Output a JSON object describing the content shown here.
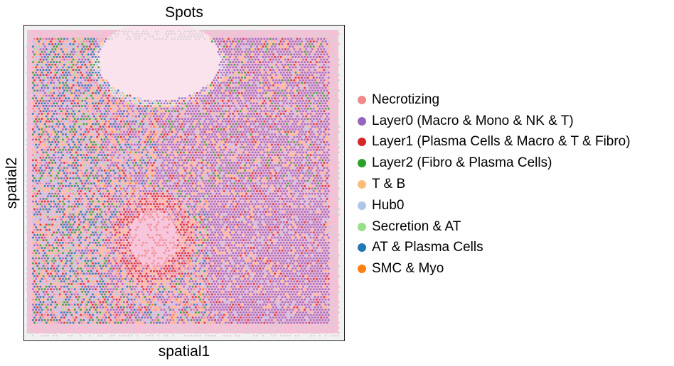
{
  "chart_data": {
    "type": "scatter",
    "title": "Spots",
    "xlabel": "spatial1",
    "ylabel": "spatial2",
    "grid": false,
    "legend_placement": "right",
    "background": "H&E tissue image (pink) underlying spot map",
    "series": [
      {
        "name": "Necrotizing",
        "color": "#f08b8b"
      },
      {
        "name": "Layer0 (Macro & Mono & NK & T)",
        "color": "#9467bd"
      },
      {
        "name": "Layer1 (Plasma Cells & Macro & T & Fibro)",
        "color": "#d62728"
      },
      {
        "name": "Layer2 (Fibro & Plasma Cells)",
        "color": "#2ca02c"
      },
      {
        "name": "T & B",
        "color": "#ffbb78"
      },
      {
        "name": "Hub0",
        "color": "#aec7e8"
      },
      {
        "name": "Secretion & AT",
        "color": "#98df8a"
      },
      {
        "name": "AT & Plasma Cells",
        "color": "#1f77b4"
      },
      {
        "name": "SMC & Myo",
        "color": "#ff7f0e"
      }
    ]
  }
}
